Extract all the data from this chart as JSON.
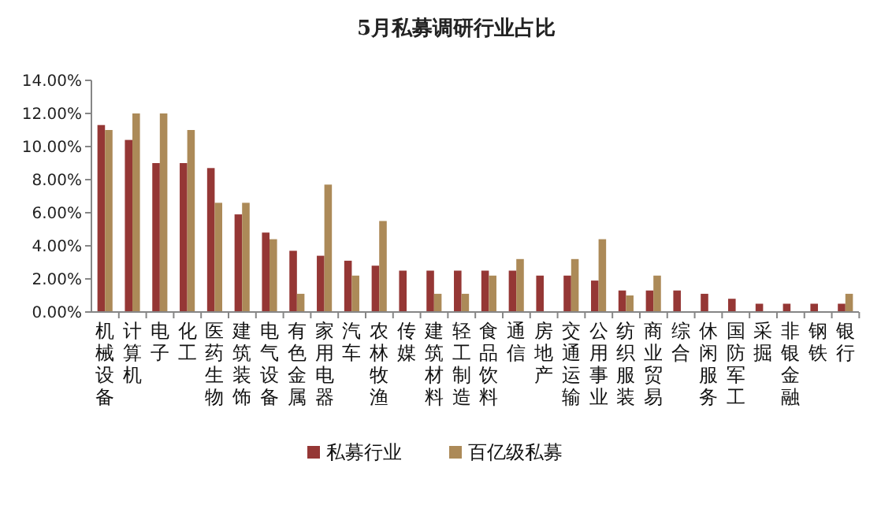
{
  "chart_data": {
    "type": "bar",
    "title": "5月私募调研行业占比",
    "categories": [
      "机械设备",
      "计算机",
      "电子",
      "化工",
      "医药生物",
      "建筑装饰",
      "电气设备",
      "有色金属",
      "家用电器",
      "汽车",
      "农林牧渔",
      "传媒",
      "建筑材料",
      "轻工制造",
      "食品饮料",
      "通信",
      "房地产",
      "交通运输",
      "公用事业",
      "纺织服装",
      "商业贸易",
      "综合",
      "休闲服务",
      "国防军工",
      "采掘",
      "非银金融",
      "钢铁",
      "银行"
    ],
    "series": [
      {
        "name": "私募行业",
        "color": "#953735",
        "values": [
          11.3,
          10.4,
          9.0,
          9.0,
          8.7,
          5.9,
          4.8,
          3.7,
          3.4,
          3.1,
          2.8,
          2.5,
          2.5,
          2.5,
          2.5,
          2.5,
          2.2,
          2.2,
          1.9,
          1.3,
          1.3,
          1.3,
          1.1,
          0.8,
          0.5,
          0.5,
          0.5,
          0.5
        ]
      },
      {
        "name": "百亿级私募",
        "color": "#ac8a58",
        "values": [
          11.0,
          12.0,
          12.0,
          11.0,
          6.6,
          6.6,
          4.4,
          1.1,
          7.7,
          2.2,
          5.5,
          0,
          1.1,
          1.1,
          2.2,
          3.2,
          0,
          3.2,
          4.4,
          1.0,
          2.2,
          0,
          0,
          0,
          0,
          0,
          0,
          1.1
        ]
      }
    ],
    "ylim": [
      0,
      14
    ],
    "yticks": [
      {
        "value": 0,
        "label": "0.00%"
      },
      {
        "value": 2,
        "label": "2.00%"
      },
      {
        "value": 4,
        "label": "4.00%"
      },
      {
        "value": 6,
        "label": "6.00%"
      },
      {
        "value": 8,
        "label": "8.00%"
      },
      {
        "value": 10,
        "label": "10.00%"
      },
      {
        "value": 12,
        "label": "12.00%"
      },
      {
        "value": 14,
        "label": "14.00%"
      }
    ],
    "grid": false,
    "legend": "bottom"
  }
}
